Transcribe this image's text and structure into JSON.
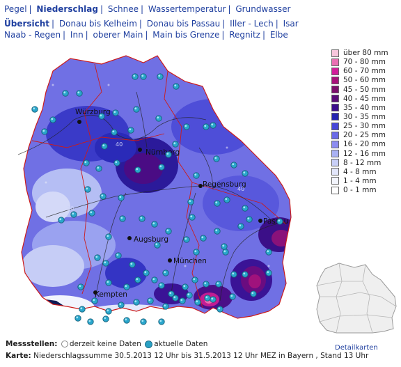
{
  "nav": {
    "main": [
      "Pegel",
      "Niederschlag",
      "Schnee",
      "Wassertemperatur",
      "Grundwasser"
    ],
    "active_main": "Niederschlag",
    "regions_row1": [
      "Übersicht",
      "Donau bis Kelheim",
      "Donau bis Passau",
      "Iller - Lech",
      "Isar"
    ],
    "regions_row2": [
      "Naab - Regen",
      "Inn",
      "oberer Main",
      "Main bis Grenze",
      "Regnitz",
      "Elbe"
    ],
    "active_region": "Übersicht"
  },
  "legend": {
    "items": [
      {
        "label": "über 80 mm",
        "color": "#f7c6dc"
      },
      {
        "label": "70 - 80 mm",
        "color": "#ea6fb3"
      },
      {
        "label": "60 - 70 mm",
        "color": "#d21e9a"
      },
      {
        "label": "50 - 60 mm",
        "color": "#a8127a"
      },
      {
        "label": "45 - 50 mm",
        "color": "#7c0f6b"
      },
      {
        "label": "40 - 45 mm",
        "color": "#5a0c78"
      },
      {
        "label": "35 - 40 mm",
        "color": "#3c0d8c"
      },
      {
        "label": "30 - 35 mm",
        "color": "#2424b0"
      },
      {
        "label": "25 - 30 mm",
        "color": "#4646d8"
      },
      {
        "label": "20 - 25 mm",
        "color": "#6a6ae8"
      },
      {
        "label": "16 - 20 mm",
        "color": "#8c8cf0"
      },
      {
        "label": "12 - 16 mm",
        "color": "#aab2f4"
      },
      {
        "label": "8 - 12 mm",
        "color": "#c8cff8"
      },
      {
        "label": "4 -   8 mm",
        "color": "#e2e6fb"
      },
      {
        "label": "1 -   4 mm",
        "color": "#f3f5fd"
      },
      {
        "label": "0 -   1 mm",
        "color": "#ffffff"
      }
    ]
  },
  "cities": [
    "Würzburg",
    "Nürnberg",
    "Regensburg",
    "Passau",
    "Augsburg",
    "München",
    "Kempten"
  ],
  "contour_labels": [
    "40",
    "30",
    "40"
  ],
  "status": {
    "label": "Messstellen:",
    "no_data": "derzeit keine Daten",
    "current": "aktuelle Daten"
  },
  "map_caption": {
    "label": "Karte:",
    "text": "Niederschlagssumme 30.5.2013 12 Uhr bis 31.5.2013 12 Uhr MEZ in Bayern , Stand 13 Uhr"
  },
  "detail_link": "Detailkarten"
}
